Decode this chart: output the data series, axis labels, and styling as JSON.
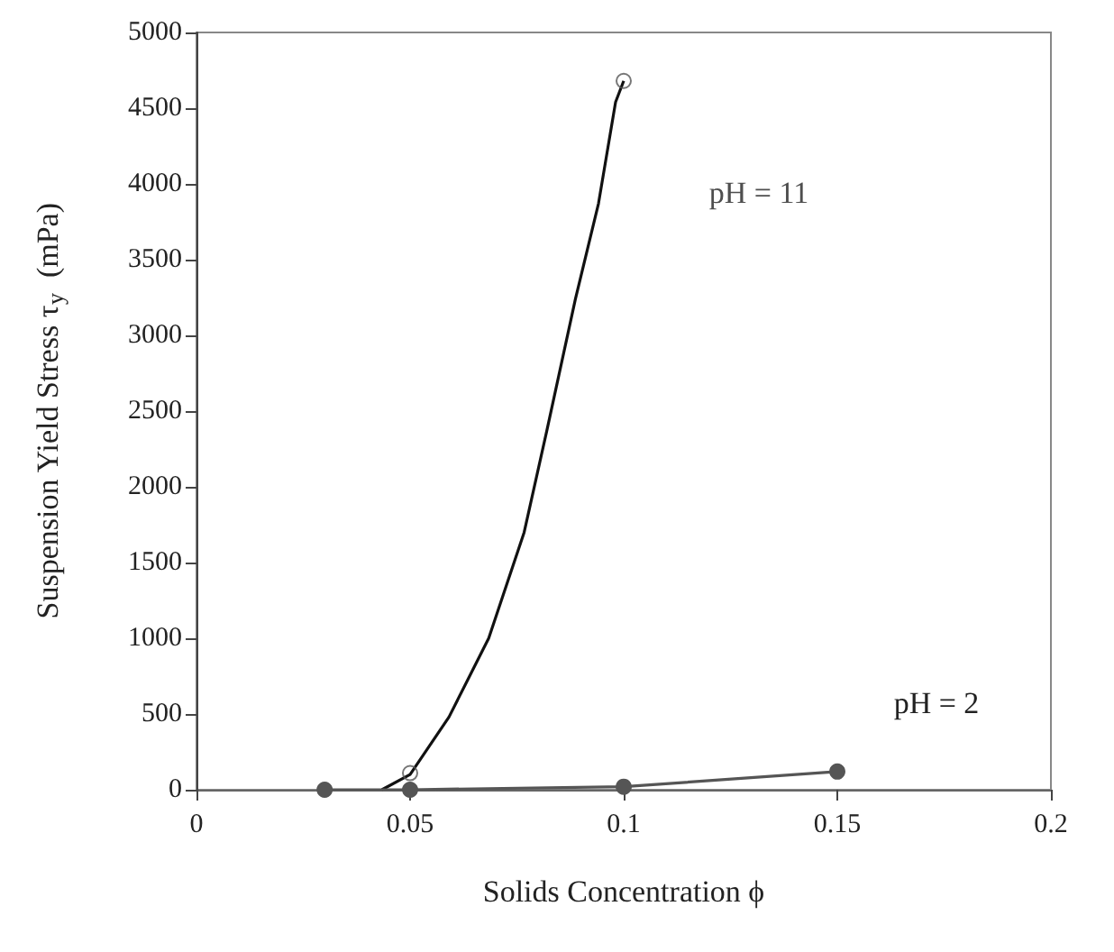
{
  "chart_data": {
    "type": "line",
    "xlabel": "Solids Concentration ϕ",
    "ylabel": "Suspension Yield Stress τ$_{y}$  (mPa)",
    "xlim": [
      0,
      0.2
    ],
    "xticks": [
      0,
      0.05,
      0.1,
      0.15,
      0.2
    ],
    "ylim": [
      0,
      5000
    ],
    "yticks": [
      0,
      500,
      1000,
      1500,
      2000,
      2500,
      3000,
      3500,
      4000,
      4500,
      5000
    ],
    "grid": false,
    "series": [
      {
        "type": "scatter",
        "name": "pH = 11",
        "color": "#555555",
        "marker": "circle",
        "x": [
          0.05,
          0.1
        ],
        "values": [
          110,
          4680
        ]
      },
      {
        "type": "line",
        "color": "#111111",
        "marker": "none",
        "x": [
          0.0434,
          0.05,
          0.0591,
          0.0684,
          0.0767,
          0.082,
          0.0887,
          0.0941,
          0.0981,
          0.1
        ],
        "values": [
          0,
          100,
          480,
          1000,
          1700,
          2370,
          3240,
          3870,
          4540,
          4680
        ]
      },
      {
        "name": "pH = 2",
        "color": "#555555",
        "marker": "circle",
        "x": [
          0.03,
          0.05,
          0.1,
          0.15
        ],
        "values": [
          0,
          0,
          20,
          120
        ]
      }
    ]
  }
}
